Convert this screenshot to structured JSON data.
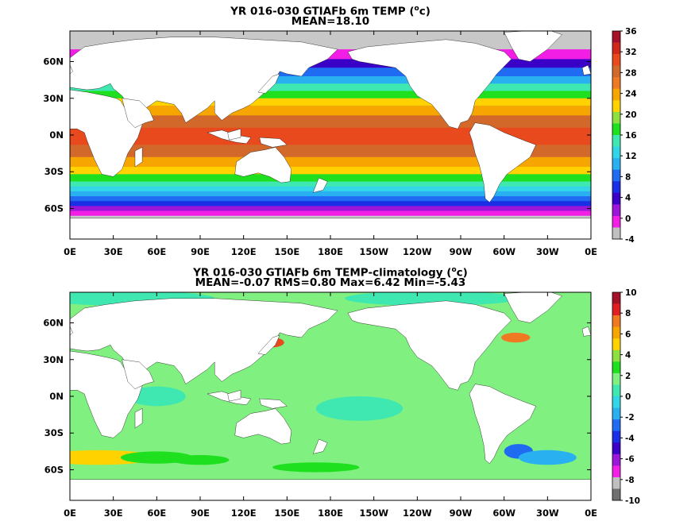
{
  "panels": [
    {
      "id": "temp",
      "title": "YR 016-030 GTIAFb 6m TEMP (",
      "title_sup": "o",
      "title_unit_tail": "c)",
      "subtitle": "MEAN=18.10",
      "lat_labels": [
        "60N",
        "30N",
        "0N",
        "30S",
        "60S"
      ],
      "lat_values": [
        60,
        30,
        0,
        -30,
        -60
      ],
      "lon_labels": [
        "0E",
        "30E",
        "60E",
        "90E",
        "120E",
        "150E",
        "180E",
        "150W",
        "120W",
        "90W",
        "60W",
        "30W",
        "0E"
      ],
      "colorbar": {
        "labels": [
          "36",
          "32",
          "28",
          "24",
          "20",
          "16",
          "12",
          "8",
          "4",
          "0",
          "-4"
        ],
        "colors": [
          "#a6112a",
          "#d1281e",
          "#e84a1e",
          "#d2692a",
          "#f07a22",
          "#f7a500",
          "#ffd200",
          "#8ee040",
          "#1fe01f",
          "#3fe8b0",
          "#33d6e6",
          "#28b0f0",
          "#1f6cf2",
          "#1a2ee6",
          "#3b00c8",
          "#9b16d8",
          "#f21ee6",
          "#c0c0c0"
        ]
      }
    },
    {
      "id": "diff",
      "title": "YR 016-030 GTIAFb 6m TEMP-climatology (",
      "title_sup": "o",
      "title_unit_tail": "c)",
      "subtitle": "MEAN=-0.07   RMS=0.80   Max=6.42   Min=-5.43",
      "lat_labels": [
        "60N",
        "30N",
        "0N",
        "30S",
        "60S"
      ],
      "lat_values": [
        60,
        30,
        0,
        -30,
        -60
      ],
      "lon_labels": [
        "0E",
        "30E",
        "60E",
        "90E",
        "120E",
        "150E",
        "180E",
        "150W",
        "120W",
        "90W",
        "60W",
        "30W",
        "0E"
      ],
      "colorbar": {
        "labels": [
          "10",
          "8",
          "6",
          "4",
          "2",
          "0",
          "-2",
          "-4",
          "-6",
          "-8",
          "-10"
        ],
        "colors": [
          "#a6112a",
          "#e02020",
          "#f07a22",
          "#f7a500",
          "#ffd200",
          "#8ee040",
          "#1fe01f",
          "#80f080",
          "#3fe8b0",
          "#33d6e6",
          "#28b0f0",
          "#1f6cf2",
          "#1a2ee6",
          "#3b00c8",
          "#9b16d8",
          "#f21ee6",
          "#c0c0c0",
          "#707070"
        ]
      }
    }
  ],
  "colors": {
    "land": "#ffffff",
    "ice": "#c8c8c8",
    "frame": "#000000"
  }
}
